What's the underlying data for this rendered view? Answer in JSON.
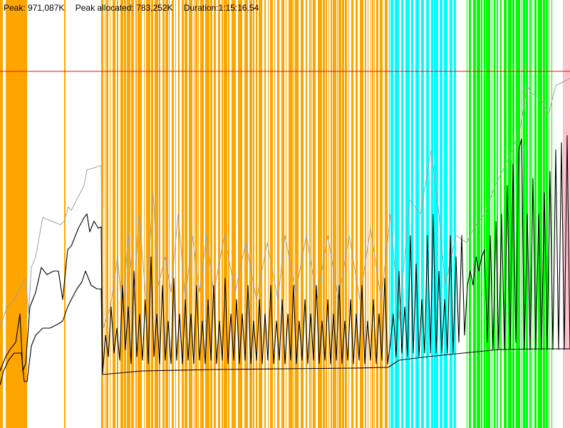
{
  "stats": {
    "peak": "Peak: 971,087K",
    "peak_allocated": "Peak allocated: 783,252K",
    "duration": "Duration:1:15:16.54"
  },
  "chart_data": {
    "type": "line",
    "title": "",
    "xlabel": "",
    "ylabel": "",
    "xlim": [
      0,
      4516.54
    ],
    "ylim": [
      0,
      1220000
    ],
    "grid": false,
    "colors": {
      "peak_line": "#ff0000",
      "total": "#a0a0a0",
      "allocated": "#000000",
      "phase_orange": "#ffa500",
      "phase_cyan": "#00ffff",
      "phase_green": "#00ff00",
      "phase_pink": "#ffc0cb"
    },
    "reference_lines": [
      {
        "kind": "peak",
        "y": 971087
      }
    ],
    "phases": [
      {
        "color": "orange",
        "from": 0,
        "to": 4,
        "style": "thin"
      },
      {
        "color": "orange",
        "from": 8,
        "to": 38,
        "style": "solid"
      },
      {
        "color": "orange",
        "from": 90,
        "to": 92,
        "style": "thin"
      },
      {
        "color": "orange",
        "from": 142,
        "to": 548,
        "style": "dense"
      },
      {
        "color": "cyan",
        "from": 548,
        "to": 640,
        "style": "dense"
      },
      {
        "color": "green",
        "from": 655,
        "to": 775,
        "style": "dense"
      },
      {
        "color": "pink",
        "from": 790,
        "to": 800,
        "style": "thin"
      }
    ],
    "series": [
      {
        "kind": "total",
        "points": [
          [
            0,
            460
          ],
          [
            10,
            430
          ],
          [
            20,
            420
          ],
          [
            30,
            400
          ],
          [
            36,
            390
          ],
          [
            40,
            440
          ],
          [
            44,
            375
          ],
          [
            50,
            360
          ],
          [
            60,
            305
          ],
          [
            72,
            310
          ],
          [
            85,
            315
          ],
          [
            90,
            310
          ],
          [
            96,
            290
          ],
          [
            100,
            295
          ],
          [
            105,
            285
          ],
          [
            118,
            260
          ],
          [
            122,
            238
          ],
          [
            130,
            236
          ],
          [
            142,
            232
          ],
          [
            145,
            460
          ],
          [
            155,
            430
          ],
          [
            165,
            360
          ],
          [
            172,
            440
          ],
          [
            180,
            330
          ],
          [
            188,
            420
          ],
          [
            195,
            300
          ],
          [
            205,
            420
          ],
          [
            215,
            270
          ],
          [
            222,
            400
          ],
          [
            232,
            360
          ],
          [
            240,
            410
          ],
          [
            250,
            300
          ],
          [
            260,
            420
          ],
          [
            270,
            330
          ],
          [
            280,
            410
          ],
          [
            290,
            330
          ],
          [
            300,
            410
          ],
          [
            315,
            330
          ],
          [
            330,
            410
          ],
          [
            345,
            340
          ],
          [
            360,
            420
          ],
          [
            375,
            340
          ],
          [
            390,
            420
          ],
          [
            400,
            330
          ],
          [
            415,
            410
          ],
          [
            430,
            330
          ],
          [
            445,
            420
          ],
          [
            460,
            330
          ],
          [
            475,
            420
          ],
          [
            490,
            330
          ],
          [
            505,
            420
          ],
          [
            520,
            320
          ],
          [
            535,
            420
          ],
          [
            548,
            300
          ],
          [
            560,
            450
          ],
          [
            575,
            280
          ],
          [
            590,
            300
          ],
          [
            605,
            210
          ],
          [
            615,
            290
          ],
          [
            625,
            400
          ],
          [
            640,
            330
          ],
          [
            655,
            340
          ],
          [
            665,
            320
          ],
          [
            680,
            300
          ],
          [
            695,
            260
          ],
          [
            705,
            240
          ],
          [
            715,
            220
          ],
          [
            725,
            195
          ],
          [
            730,
            180
          ],
          [
            740,
            120
          ],
          [
            745,
            130
          ],
          [
            760,
            140
          ],
          [
            770,
            160
          ],
          [
            780,
            120
          ],
          [
            790,
            115
          ],
          [
            800,
            110
          ]
        ]
      },
      {
        "kind": "allocated",
        "points": [
          [
            0,
            520
          ],
          [
            8,
            500
          ],
          [
            14,
            490
          ],
          [
            22,
            480
          ],
          [
            28,
            440
          ],
          [
            32,
            520
          ],
          [
            36,
            510
          ],
          [
            42,
            430
          ],
          [
            50,
            410
          ],
          [
            58,
            375
          ],
          [
            66,
            385
          ],
          [
            75,
            380
          ],
          [
            82,
            380
          ],
          [
            88,
            420
          ],
          [
            95,
            350
          ],
          [
            100,
            345
          ],
          [
            110,
            320
          ],
          [
            118,
            305
          ],
          [
            122,
            300
          ],
          [
            126,
            325
          ],
          [
            132,
            310
          ],
          [
            138,
            320
          ],
          [
            142,
            318
          ],
          [
            144,
            525
          ],
          [
            148,
            470
          ],
          [
            152,
            500
          ],
          [
            156,
            430
          ],
          [
            160,
            495
          ],
          [
            164,
            460
          ],
          [
            168,
            505
          ],
          [
            172,
            400
          ],
          [
            176,
            490
          ],
          [
            180,
            430
          ],
          [
            184,
            510
          ],
          [
            188,
            380
          ],
          [
            192,
            500
          ],
          [
            196,
            440
          ],
          [
            200,
            505
          ],
          [
            204,
            420
          ],
          [
            208,
            510
          ],
          [
            212,
            360
          ],
          [
            216,
            500
          ],
          [
            220,
            440
          ],
          [
            224,
            510
          ],
          [
            228,
            400
          ],
          [
            232,
            505
          ],
          [
            236,
            450
          ],
          [
            240,
            510
          ],
          [
            244,
            390
          ],
          [
            248,
            505
          ],
          [
            252,
            440
          ],
          [
            256,
            510
          ],
          [
            260,
            420
          ],
          [
            264,
            505
          ],
          [
            268,
            440
          ],
          [
            272,
            510
          ],
          [
            276,
            400
          ],
          [
            280,
            505
          ],
          [
            284,
            450
          ],
          [
            288,
            510
          ],
          [
            292,
            420
          ],
          [
            296,
            505
          ],
          [
            300,
            400
          ],
          [
            304,
            510
          ],
          [
            308,
            450
          ],
          [
            312,
            505
          ],
          [
            316,
            390
          ],
          [
            320,
            510
          ],
          [
            324,
            440
          ],
          [
            328,
            505
          ],
          [
            332,
            420
          ],
          [
            336,
            510
          ],
          [
            340,
            440
          ],
          [
            344,
            505
          ],
          [
            348,
            400
          ],
          [
            352,
            510
          ],
          [
            356,
            450
          ],
          [
            360,
            505
          ],
          [
            364,
            420
          ],
          [
            368,
            510
          ],
          [
            372,
            440
          ],
          [
            376,
            505
          ],
          [
            380,
            400
          ],
          [
            384,
            510
          ],
          [
            388,
            450
          ],
          [
            392,
            505
          ],
          [
            396,
            420
          ],
          [
            400,
            510
          ],
          [
            404,
            440
          ],
          [
            408,
            505
          ],
          [
            412,
            400
          ],
          [
            416,
            510
          ],
          [
            420,
            450
          ],
          [
            424,
            505
          ],
          [
            428,
            420
          ],
          [
            432,
            510
          ],
          [
            436,
            440
          ],
          [
            440,
            505
          ],
          [
            444,
            400
          ],
          [
            448,
            510
          ],
          [
            452,
            450
          ],
          [
            456,
            505
          ],
          [
            460,
            420
          ],
          [
            464,
            510
          ],
          [
            468,
            440
          ],
          [
            472,
            505
          ],
          [
            476,
            400
          ],
          [
            480,
            510
          ],
          [
            484,
            450
          ],
          [
            488,
            505
          ],
          [
            492,
            420
          ],
          [
            496,
            510
          ],
          [
            500,
            440
          ],
          [
            504,
            505
          ],
          [
            508,
            400
          ],
          [
            512,
            510
          ],
          [
            516,
            450
          ],
          [
            520,
            505
          ],
          [
            524,
            420
          ],
          [
            528,
            510
          ],
          [
            532,
            440
          ],
          [
            536,
            505
          ],
          [
            540,
            390
          ],
          [
            544,
            510
          ],
          [
            548,
            480
          ],
          [
            552,
            440
          ],
          [
            556,
            500
          ],
          [
            560,
            380
          ],
          [
            564,
            495
          ],
          [
            568,
            430
          ],
          [
            572,
            500
          ],
          [
            576,
            330
          ],
          [
            580,
            495
          ],
          [
            584,
            370
          ],
          [
            588,
            500
          ],
          [
            592,
            420
          ],
          [
            596,
            495
          ],
          [
            600,
            330
          ],
          [
            604,
            495
          ],
          [
            608,
            300
          ],
          [
            612,
            495
          ],
          [
            616,
            380
          ],
          [
            620,
            495
          ],
          [
            624,
            420
          ],
          [
            628,
            495
          ],
          [
            632,
            330
          ],
          [
            636,
            495
          ],
          [
            640,
            360
          ],
          [
            644,
            480
          ],
          [
            648,
            330
          ],
          [
            652,
            470
          ],
          [
            656,
            400
          ],
          [
            660,
            380
          ],
          [
            664,
            400
          ],
          [
            668,
            360
          ],
          [
            672,
            380
          ],
          [
            676,
            360
          ],
          [
            680,
            350
          ],
          [
            684,
            480
          ],
          [
            688,
            330
          ],
          [
            692,
            490
          ],
          [
            696,
            310
          ],
          [
            700,
            490
          ],
          [
            704,
            300
          ],
          [
            708,
            490
          ],
          [
            712,
            260
          ],
          [
            716,
            490
          ],
          [
            720,
            230
          ],
          [
            724,
            480
          ],
          [
            728,
            210
          ],
          [
            732,
            195
          ],
          [
            736,
            490
          ],
          [
            740,
            300
          ],
          [
            744,
            490
          ],
          [
            748,
            250
          ],
          [
            752,
            490
          ],
          [
            756,
            300
          ],
          [
            760,
            490
          ],
          [
            764,
            270
          ],
          [
            768,
            490
          ],
          [
            772,
            240
          ],
          [
            776,
            490
          ],
          [
            780,
            210
          ],
          [
            784,
            490
          ],
          [
            788,
            200
          ],
          [
            792,
            490
          ],
          [
            796,
            190
          ],
          [
            800,
            490
          ]
        ]
      },
      {
        "kind": "allocated",
        "points": [
          [
            0,
            540
          ],
          [
            5,
            520
          ],
          [
            12,
            505
          ],
          [
            20,
            495
          ],
          [
            30,
            495
          ],
          [
            34,
            535
          ],
          [
            38,
            535
          ],
          [
            44,
            485
          ],
          [
            50,
            470
          ],
          [
            60,
            460
          ],
          [
            70,
            460
          ],
          [
            80,
            455
          ],
          [
            88,
            450
          ],
          [
            95,
            430
          ],
          [
            100,
            420
          ],
          [
            108,
            405
          ],
          [
            115,
            395
          ],
          [
            120,
            380
          ],
          [
            128,
            400
          ],
          [
            136,
            405
          ],
          [
            142,
            405
          ],
          [
            144,
            525
          ],
          [
            200,
            520
          ],
          [
            300,
            518
          ],
          [
            400,
            517
          ],
          [
            500,
            516
          ],
          [
            545,
            515
          ],
          [
            560,
            505
          ],
          [
            600,
            500
          ],
          [
            650,
            495
          ],
          [
            700,
            490
          ],
          [
            760,
            489
          ],
          [
            800,
            489
          ]
        ]
      }
    ]
  }
}
